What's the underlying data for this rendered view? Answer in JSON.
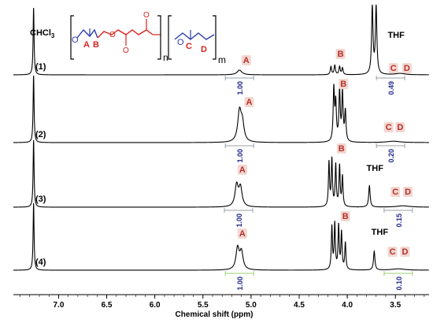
{
  "chart_data": {
    "type": "line",
    "xlabel": "Chemical shift (ppm)",
    "xlim": [
      7.47,
      3.15
    ],
    "x_ticks": [
      "7.0",
      "6.5",
      "6.0",
      "5.5",
      "5.0",
      "4.5",
      "4.0",
      "3.5"
    ],
    "solvent_label": "CHCl",
    "solvent_sub": "3",
    "structure": {
      "n_label": "n",
      "m_label": "m",
      "A": "A",
      "B": "B",
      "C": "C",
      "D": "D"
    },
    "spectra": [
      {
        "name": "(1)",
        "integrals": [
          {
            "x": 5.12,
            "value": "1.00"
          },
          {
            "x": 3.55,
            "value": "0.49"
          }
        ],
        "peak_labels": [
          {
            "x": 5.05,
            "text": "A"
          },
          {
            "x": 4.07,
            "text": "B"
          },
          {
            "x": 3.52,
            "text": "C"
          },
          {
            "x": 3.38,
            "text": "D"
          },
          {
            "x": 3.58,
            "text": "THF"
          }
        ]
      },
      {
        "name": "(2)",
        "integrals": [
          {
            "x": 5.12,
            "value": "1.00"
          },
          {
            "x": 3.55,
            "value": "0.20"
          }
        ],
        "peak_labels": [
          {
            "x": 5.02,
            "text": "A"
          },
          {
            "x": 4.04,
            "text": "B"
          },
          {
            "x": 3.57,
            "text": "C"
          },
          {
            "x": 3.45,
            "text": "D"
          }
        ]
      },
      {
        "name": "(3)",
        "integrals": [
          {
            "x": 5.13,
            "value": "1.00"
          },
          {
            "x": 3.47,
            "value": "0.15"
          }
        ],
        "peak_labels": [
          {
            "x": 5.09,
            "text": "A"
          },
          {
            "x": 4.06,
            "text": "B"
          },
          {
            "x": 3.5,
            "text": "C"
          },
          {
            "x": 3.37,
            "text": "D"
          },
          {
            "x": 3.8,
            "text": "THF"
          }
        ]
      },
      {
        "name": "(4)",
        "integrals": [
          {
            "x": 5.12,
            "value": "1.00"
          },
          {
            "x": 3.47,
            "value": "0.10"
          }
        ],
        "peak_labels": [
          {
            "x": 5.09,
            "text": "A"
          },
          {
            "x": 4.02,
            "text": "B"
          },
          {
            "x": 3.53,
            "text": "C"
          },
          {
            "x": 3.4,
            "text": "D"
          },
          {
            "x": 3.75,
            "text": "THF"
          }
        ]
      }
    ],
    "peaks": [
      {
        "spectrum": 0,
        "x": 7.26,
        "h": 1.0,
        "w": 0.006
      },
      {
        "spectrum": 0,
        "x": 5.12,
        "h": 0.07,
        "w": 0.03
      },
      {
        "spectrum": 0,
        "x": 4.17,
        "h": 0.12,
        "w": 0.008
      },
      {
        "spectrum": 0,
        "x": 4.13,
        "h": 0.14,
        "w": 0.008
      },
      {
        "spectrum": 0,
        "x": 4.08,
        "h": 0.12,
        "w": 0.008
      },
      {
        "spectrum": 0,
        "x": 4.05,
        "h": 0.1,
        "w": 0.008
      },
      {
        "spectrum": 0,
        "x": 3.74,
        "h": 1.0,
        "w": 0.009
      },
      {
        "spectrum": 0,
        "x": 3.7,
        "h": 1.0,
        "w": 0.009
      },
      {
        "spectrum": 0,
        "x": 3.45,
        "h": 0.02,
        "w": 0.06
      },
      {
        "spectrum": 1,
        "x": 7.26,
        "h": 1.0,
        "w": 0.006
      },
      {
        "spectrum": 1,
        "x": 5.12,
        "h": 0.45,
        "w": 0.022
      },
      {
        "spectrum": 1,
        "x": 5.09,
        "h": 0.25,
        "w": 0.02
      },
      {
        "spectrum": 1,
        "x": 4.14,
        "h": 0.78,
        "w": 0.008
      },
      {
        "spectrum": 1,
        "x": 4.12,
        "h": 0.55,
        "w": 0.008
      },
      {
        "spectrum": 1,
        "x": 4.08,
        "h": 0.75,
        "w": 0.008
      },
      {
        "spectrum": 1,
        "x": 4.05,
        "h": 0.72,
        "w": 0.008
      },
      {
        "spectrum": 1,
        "x": 4.02,
        "h": 0.45,
        "w": 0.008
      },
      {
        "spectrum": 1,
        "x": 3.52,
        "h": 0.02,
        "w": 0.08
      },
      {
        "spectrum": 2,
        "x": 7.26,
        "h": 1.0,
        "w": 0.006
      },
      {
        "spectrum": 2,
        "x": 5.15,
        "h": 0.32,
        "w": 0.02
      },
      {
        "spectrum": 2,
        "x": 5.11,
        "h": 0.28,
        "w": 0.02
      },
      {
        "spectrum": 2,
        "x": 4.19,
        "h": 0.66,
        "w": 0.007
      },
      {
        "spectrum": 2,
        "x": 4.16,
        "h": 0.7,
        "w": 0.007
      },
      {
        "spectrum": 2,
        "x": 4.12,
        "h": 0.62,
        "w": 0.007
      },
      {
        "spectrum": 2,
        "x": 4.08,
        "h": 0.6,
        "w": 0.007
      },
      {
        "spectrum": 2,
        "x": 4.05,
        "h": 0.45,
        "w": 0.007
      },
      {
        "spectrum": 2,
        "x": 3.77,
        "h": 0.32,
        "w": 0.009
      },
      {
        "spectrum": 2,
        "x": 3.42,
        "h": 0.02,
        "w": 0.08
      },
      {
        "spectrum": 3,
        "x": 7.26,
        "h": 1.0,
        "w": 0.006
      },
      {
        "spectrum": 3,
        "x": 5.14,
        "h": 0.32,
        "w": 0.02
      },
      {
        "spectrum": 3,
        "x": 5.1,
        "h": 0.26,
        "w": 0.02
      },
      {
        "spectrum": 3,
        "x": 4.16,
        "h": 0.64,
        "w": 0.007
      },
      {
        "spectrum": 3,
        "x": 4.13,
        "h": 0.68,
        "w": 0.007
      },
      {
        "spectrum": 3,
        "x": 4.09,
        "h": 0.65,
        "w": 0.007
      },
      {
        "spectrum": 3,
        "x": 4.06,
        "h": 0.55,
        "w": 0.007
      },
      {
        "spectrum": 3,
        "x": 4.02,
        "h": 0.4,
        "w": 0.007
      },
      {
        "spectrum": 3,
        "x": 3.72,
        "h": 0.28,
        "w": 0.009
      },
      {
        "spectrum": 3,
        "x": 3.47,
        "h": 0.02,
        "w": 0.08
      }
    ]
  },
  "colors": {
    "trace": "#000000",
    "integral_text": "#1f2a8c",
    "integral_line": "#9aa0a6",
    "integral_line_last": "#9bd070",
    "peak_label": "#b5302a",
    "peak_label_bg": "#f3d7d2",
    "structure_red": "#d8231c",
    "structure_blue": "#2b3ca8"
  }
}
